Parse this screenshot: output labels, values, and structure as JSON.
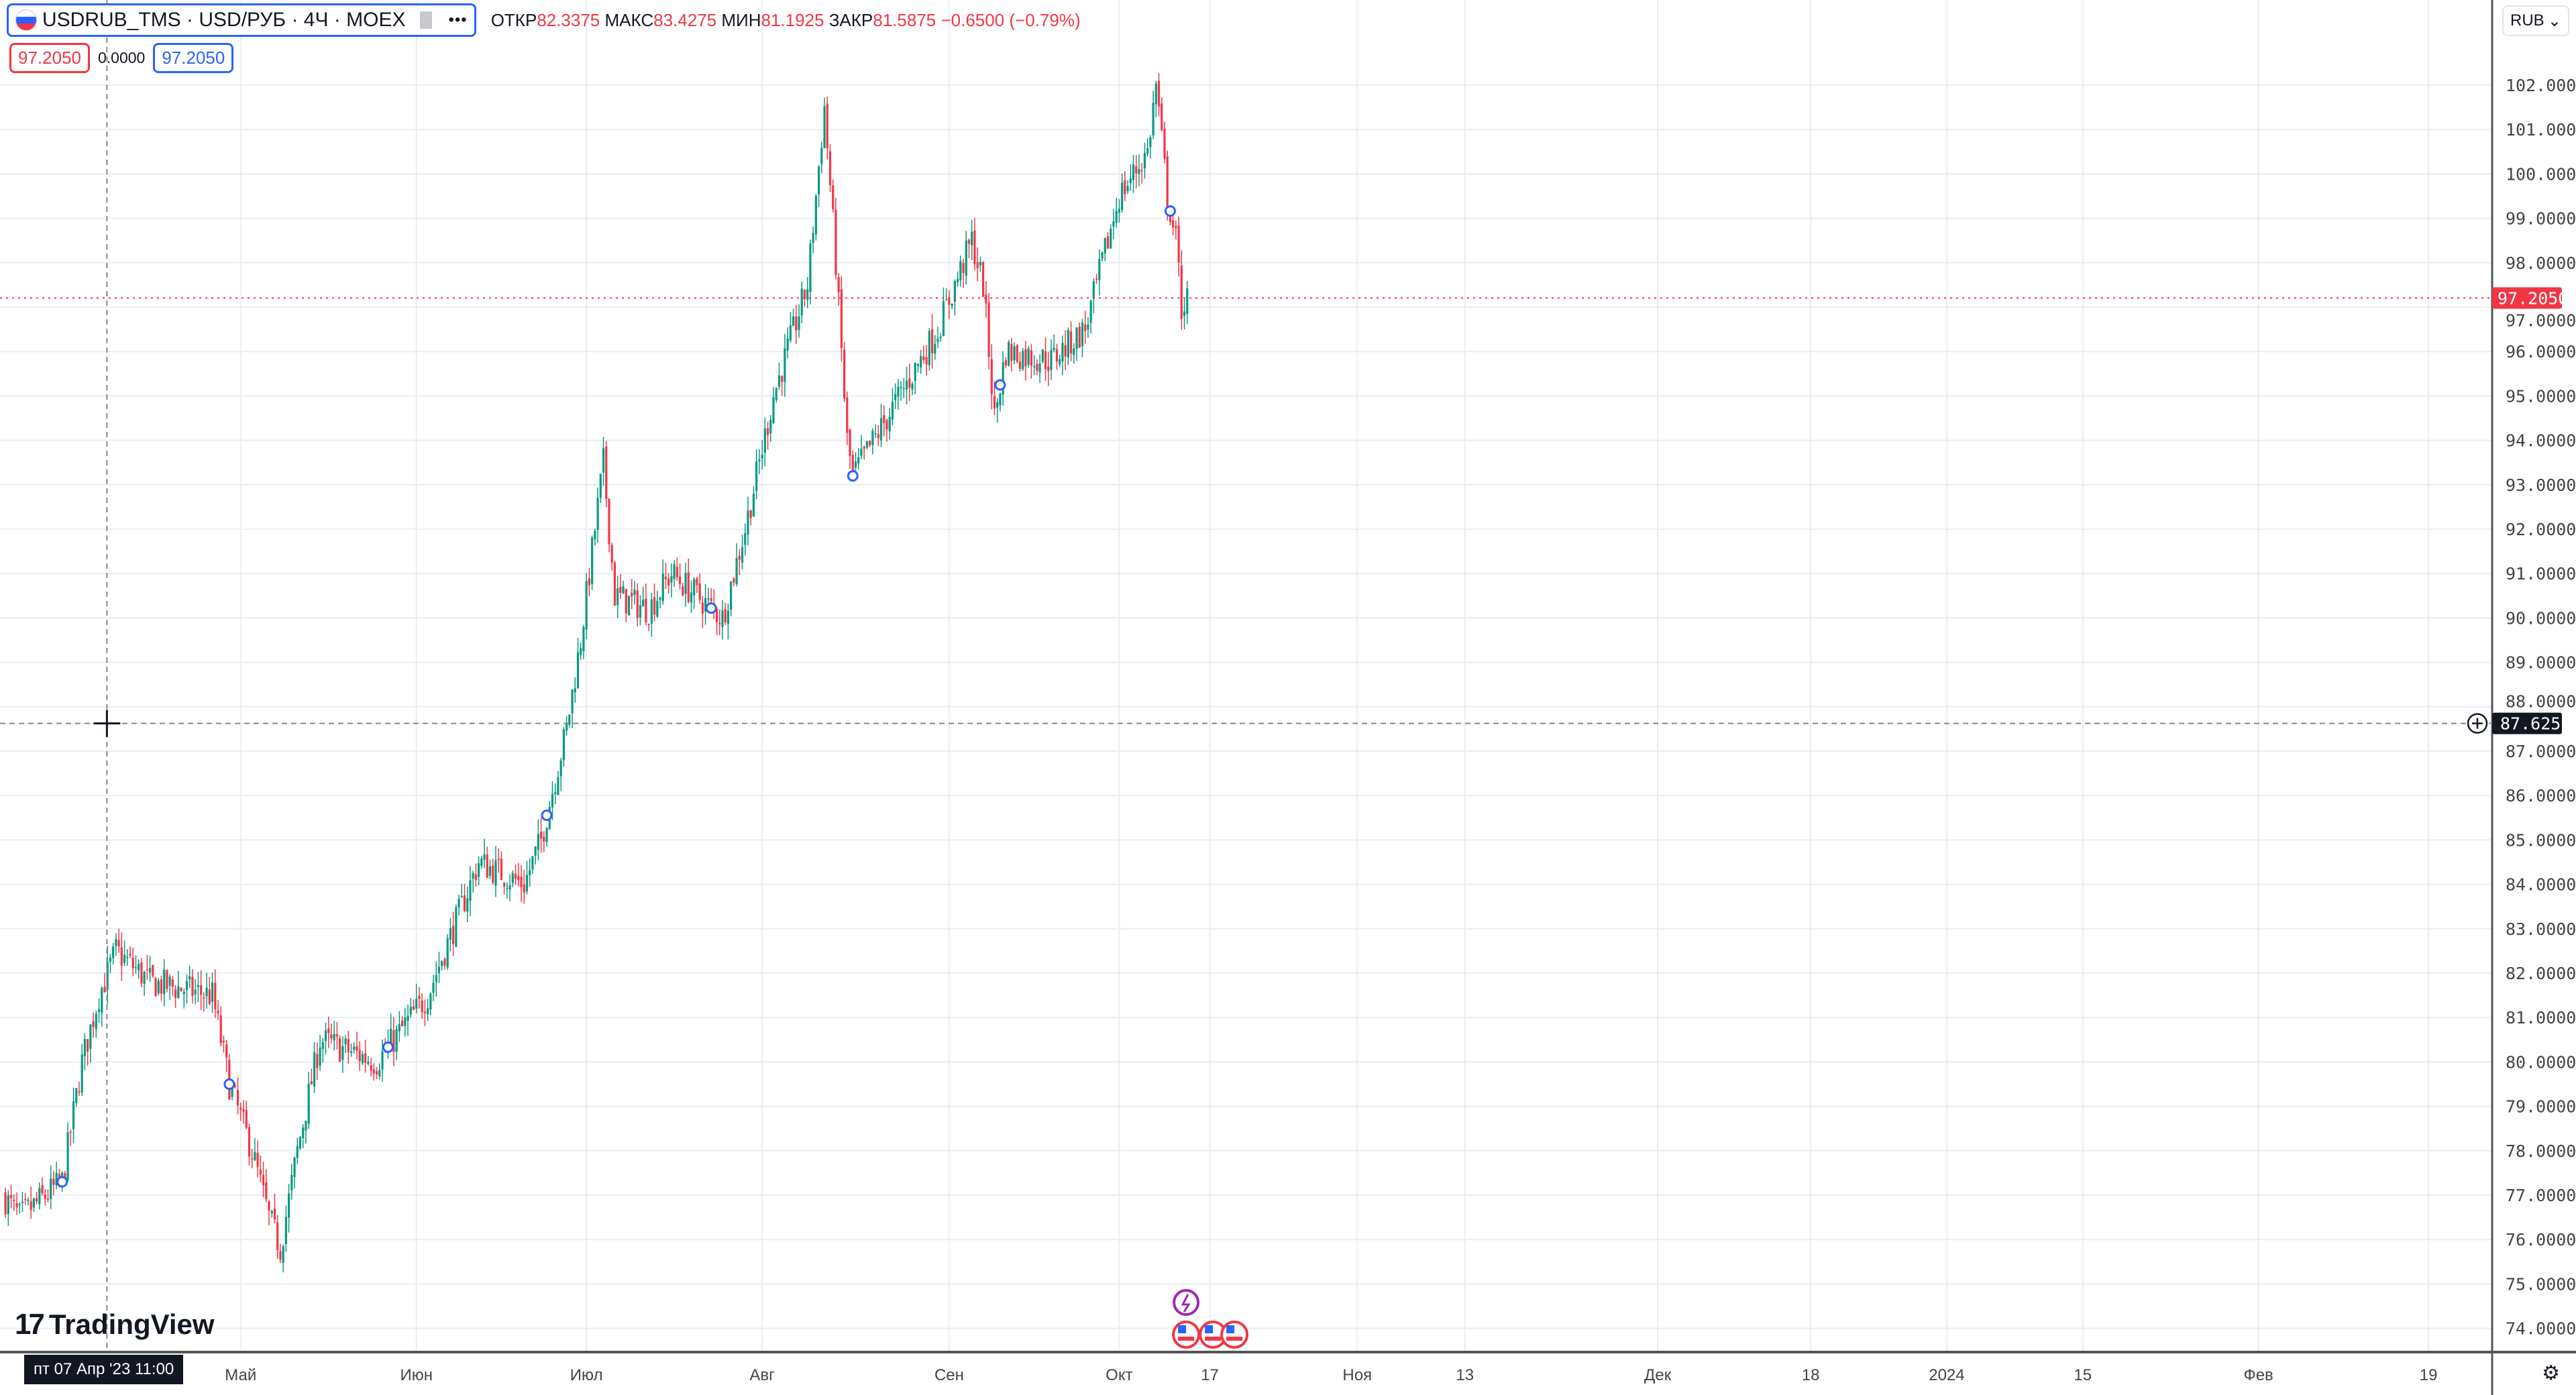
{
  "legend": {
    "symbol": "USDRUB_TMS · USD/РУБ · 4Ч · MOEX",
    "more": "•••",
    "open_label": "ОТКР",
    "open": "82.3375",
    "high_label": "МАКС",
    "high": "83.4275",
    "low_label": "МИН",
    "low": "81.1925",
    "close_label": "ЗАКР",
    "close": "81.5875",
    "change": "−0.6500 (−0.79%)",
    "bid": "97.2050",
    "spread": "0.0000",
    "ask": "97.2050"
  },
  "currency": "RUB",
  "crosshair": {
    "price_label": "87.6250",
    "date_label": "пт 07 Апр '23   11:00",
    "price": 87.625,
    "day": 6.4
  },
  "logo": "TradingView",
  "colors": {
    "up": "#089981",
    "down": "#f23645",
    "accent": "#2962ff",
    "grid": "#e8eef5"
  },
  "chart_data": {
    "type": "candlestick",
    "symbol": "USDRUB_TMS",
    "timeframe": "4H",
    "x_unit": "days since 2023-04-01",
    "ylim": [
      73.5,
      102.6
    ],
    "last_price": 97.205,
    "last_price_label": "97.2050",
    "y_ticks": [
      "102.0000",
      "101.0000",
      "100.0000",
      "99.0000",
      "98.0000",
      "97.0000",
      "96.0000",
      "95.0000",
      "94.0000",
      "93.0000",
      "92.0000",
      "91.0000",
      "90.0000",
      "89.0000",
      "88.0000",
      "87.0000",
      "86.0000",
      "85.0000",
      "84.0000",
      "83.0000",
      "82.0000",
      "81.0000",
      "80.0000",
      "79.0000",
      "78.0000",
      "77.0000",
      "76.0000",
      "75.0000",
      "74.0000"
    ],
    "x_ticks": [
      {
        "label": "Май",
        "day": 30
      },
      {
        "label": "Июн",
        "day": 61
      },
      {
        "label": "Июл",
        "day": 91
      },
      {
        "label": "Авг",
        "day": 122
      },
      {
        "label": "Сен",
        "day": 155
      },
      {
        "label": "Окт",
        "day": 185
      },
      {
        "label": "17",
        "day": 201
      },
      {
        "label": "Ноя",
        "day": 227
      },
      {
        "label": "13",
        "day": 246
      },
      {
        "label": "Дек",
        "day": 280
      },
      {
        "label": "18",
        "day": 307
      },
      {
        "label": "2024",
        "day": 331
      },
      {
        "label": "15",
        "day": 355
      },
      {
        "label": "Фев",
        "day": 386
      },
      {
        "label": "19",
        "day": 416
      }
    ],
    "close_path": [
      [
        -12,
        77
      ],
      [
        -9,
        76.5
      ],
      [
        -1.5,
        77.3
      ],
      [
        2,
        80
      ],
      [
        5,
        81.5
      ],
      [
        8,
        82.5
      ],
      [
        14,
        81.8
      ],
      [
        25,
        81.5
      ],
      [
        28,
        79.5
      ],
      [
        32,
        78
      ],
      [
        35,
        76.5
      ],
      [
        37,
        75.8
      ],
      [
        40,
        78
      ],
      [
        44,
        80.5
      ],
      [
        54,
        80
      ],
      [
        63,
        81.5
      ],
      [
        69,
        83.5
      ],
      [
        72,
        84.5
      ],
      [
        80,
        84
      ],
      [
        83,
        85
      ],
      [
        87.5,
        87.5
      ],
      [
        90,
        89.5
      ],
      [
        94,
        93.5
      ],
      [
        96,
        90.5
      ],
      [
        102,
        90.2
      ],
      [
        106,
        91
      ],
      [
        115,
        90
      ],
      [
        119,
        92
      ],
      [
        124,
        95
      ],
      [
        130,
        97.5
      ],
      [
        133,
        101.5
      ],
      [
        135,
        98
      ],
      [
        137,
        94
      ],
      [
        138,
        93.2
      ],
      [
        144,
        94.5
      ],
      [
        153,
        96.5
      ],
      [
        159,
        98.5
      ],
      [
        161,
        97.5
      ],
      [
        163,
        94.5
      ],
      [
        165,
        96
      ],
      [
        173,
        95.8
      ],
      [
        179,
        96.5
      ],
      [
        185,
        99.5
      ],
      [
        190,
        100.5
      ],
      [
        191.5,
        102
      ],
      [
        193.5,
        99.5
      ],
      [
        195,
        98.5
      ],
      [
        196,
        97
      ],
      [
        197,
        97.2
      ]
    ],
    "markers_days": [
      -1.5,
      28,
      56,
      84,
      113,
      138,
      164,
      194
    ]
  }
}
